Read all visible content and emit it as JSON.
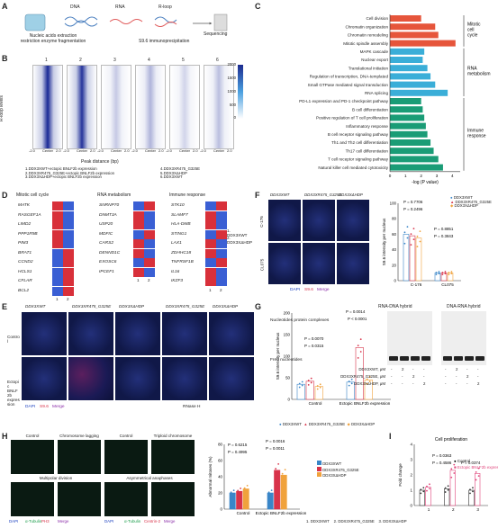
{
  "panels": {
    "A": {
      "letter": "A",
      "labels": [
        "DNA",
        "RNA",
        "R-loop",
        "Nucleic acids extraction",
        "restriction enzyme fragmentation",
        "S9.6 immunoprecipitation",
        "Sequencing"
      ]
    },
    "B": {
      "letter": "B",
      "ylabel": "R-loop levels",
      "xlabel": "Peak distance (bp)",
      "columns": [
        "1",
        "2",
        "3",
        "4",
        "5",
        "6"
      ],
      "ticks": [
        "-2.0",
        "Center",
        "2.0"
      ],
      "colorbar": [
        "2000",
        "1500",
        "1000",
        "500",
        "0"
      ],
      "legend": [
        "1.DDX3XWT+ectopic BNLF2b expression",
        "2.DDX3XR475_G325E+ectopic BNLF2b expression",
        "3.DDX3XΔHDP+ectopic BNLF2b expression",
        "4.DDX3XR475_G325E",
        "5.DDX3XΔHDP",
        "6.DDX3XWT"
      ]
    },
    "C": {
      "letter": "C",
      "xlabel": "-log (P value)",
      "xticks": [
        "0",
        "1",
        "2",
        "3",
        "4"
      ],
      "groups": [
        {
          "label": "Mitotic cell cycle",
          "color": "#e6553b"
        },
        {
          "label": "RNA metabolism",
          "color": "#3aaed8"
        },
        {
          "label": "Immune response",
          "color": "#1a9c76"
        }
      ]
    },
    "D": {
      "letter": "D",
      "headers": [
        "Mitotic cell cycle",
        "RNA metabolism",
        "Immune response"
      ],
      "col1": [
        "MATK",
        "RASGEF1A",
        "LIMD2",
        "PPP1R9B",
        "PIM3",
        "BRAT1",
        "CCND2",
        "HCLS1",
        "CFLAR",
        "BCL2"
      ],
      "col2": [
        "SNRNP70",
        "DNMT3A",
        "USP20",
        "MDFIC",
        "CARS2",
        "DENND1C",
        "EXOSC6",
        "IPCEF1"
      ],
      "col3": [
        "STK10",
        "SLAMF7",
        "HLA-DMB",
        "STING1",
        "LAX1",
        "ZDHHC18",
        "TNFRSF1B",
        "IL16",
        "IKZF3"
      ],
      "axis": [
        "1",
        "2"
      ],
      "legend": [
        "1. DDX3XWT",
        "2. DDX3XΔHDP"
      ]
    },
    "E": {
      "letter": "E",
      "cols": [
        "DDX3XWT",
        "DDX3XR475_G325E",
        "DDX3XΔHDP",
        "DDX3XR475_G325E",
        "DDX3XΔHDP"
      ],
      "rows": [
        "Control",
        "Ectopic BNLF2b expression"
      ],
      "stain": [
        "DAPI",
        "S9.6",
        "Merge"
      ],
      "footer": "RNase H",
      "ylabel": "S9.6 intensity per nucleus",
      "yticks": [
        "0",
        "50",
        "100",
        "150",
        "200"
      ],
      "pvals": [
        "P = 0.0014",
        "P < 0.0001",
        "P = 0.0070",
        "P = 0.0315"
      ],
      "xcats": [
        "Control",
        "Ectopic BNLF2b expression"
      ],
      "legend": [
        "DDX3XWT",
        "DDX3XR475_G325E",
        "DDX3XΔHDP"
      ]
    },
    "F": {
      "letter": "F",
      "cols": [
        "DDX3XWT",
        "DDX3XR475_G325E",
        "DDX3XΔHDP"
      ],
      "rows": [
        "C-176",
        "CL075"
      ],
      "stain": [
        "DAPI",
        "S9.6",
        "Merge"
      ],
      "ylabel": "S9.6 intensity per nucleus",
      "yticks": [
        "0",
        "20",
        "40",
        "60",
        "80",
        "100"
      ],
      "pvals": [
        "P = 0.7706",
        "P = 0.2496",
        "P = 0.8851",
        "P = 0.3843"
      ],
      "xcats": [
        "C-176",
        "CL075"
      ],
      "legend": [
        "DDX3XWT",
        "DDX3XR475_G325E",
        "DDX3XΔHDP"
      ]
    },
    "G": {
      "letter": "G",
      "titles": [
        "RNA-DNA hybrid",
        "DNA-RNA hybrid"
      ],
      "labels": [
        "Nucleotides protein complexes",
        "Free nucleotides"
      ],
      "rows": [
        {
          "name": "DDX3XWT, μM",
          "v": [
            "-",
            "2",
            "-",
            "-",
            "-",
            "2",
            "-",
            "-"
          ]
        },
        {
          "name": "DDX3XR475_G325E, μM",
          "v": [
            "-",
            "-",
            "2",
            "-",
            "-",
            "-",
            "2",
            "-"
          ]
        },
        {
          "name": "DDX3XΔHDP, μM",
          "v": [
            "-",
            "-",
            "-",
            "2",
            "-",
            "-",
            "-",
            "2"
          ]
        }
      ]
    },
    "H": {
      "letter": "H",
      "cap1": [
        "Control",
        "Chromosome lagging",
        "Control",
        "Triploid chromosome"
      ],
      "cap2": [
        "Multipolar division",
        "Asymmetrical anaphases"
      ],
      "stain1": [
        "DAPI",
        "α-Tubulin",
        "PH3",
        "Merge"
      ],
      "stain2": [
        "DAPI",
        "α-Tubulin",
        "Centrin-2",
        "Merge"
      ],
      "ylabel": "Abnormal mitoses (%)",
      "yticks": [
        "0",
        "20",
        "40",
        "60",
        "80"
      ],
      "pvals": [
        "P = 0.6215",
        "P = 0.4995",
        "P = 0.0016",
        "P = 0.0011"
      ],
      "xcats": [
        "Control",
        "Ectopic BNLF2b expression"
      ],
      "legend": [
        "DDX3XWT",
        "DDX3XR475_G325E",
        "DDX3XΔHDP"
      ]
    },
    "I": {
      "letter": "I",
      "title": "Cell proliferation",
      "ylabel": "Fold change",
      "yticks": [
        "0",
        "1",
        "2",
        "3",
        "4"
      ],
      "pvals": [
        "P = 0.0363",
        "P = 0.4586",
        "P = 0.0374"
      ],
      "xcats": [
        "1",
        "2",
        "3"
      ],
      "legend": [
        "Control",
        "Ectopic BNLF2b expression"
      ],
      "footer": [
        "1. DDX3XWT",
        "2. DDX3XR475_G325E",
        "3. DDX3XΔHDP"
      ]
    }
  },
  "chart_data": [
    {
      "type": "bar",
      "title": "",
      "xlabel": "-log (P value)",
      "ylabel": "",
      "categories": [
        "Cell division",
        "Chromatin organization",
        "Chromatin remodeling",
        "Mitotic spindle assembly",
        "MAPK cascade",
        "Nuclear export",
        "Translational initiation",
        "Regulation of transcription, DNA-templated",
        "Small GTPase mediated signal transduction",
        "RNA splicing",
        "PD-L1 expression and PD-1 checkpoint pathway",
        "B cell differentiation",
        "Positive regulation of T cell proliferation",
        "Inflammatory response",
        "B cell receptor signaling pathway",
        "Th1 and Th2 cell differentiation",
        "Th17 cell differentiation",
        "T cell receptor signaling pathway",
        "Natural killer cell mediated cytotoxicity"
      ],
      "values": [
        2.0,
        2.9,
        3.1,
        4.2,
        2.2,
        2.1,
        2.4,
        2.6,
        2.9,
        3.7,
        2.0,
        2.1,
        2.2,
        2.3,
        2.4,
        2.6,
        2.8,
        3.1,
        3.4
      ],
      "xlim": [
        0,
        4.5
      ]
    },
    {
      "type": "bar",
      "title": "",
      "ylabel": "S9.6 intensity per nucleus",
      "categories": [
        "Control",
        "Ectopic BNLF2b expression"
      ],
      "series": [
        {
          "name": "DDX3XWT",
          "values": [
            35,
            40
          ]
        },
        {
          "name": "DDX3XR475_G325E",
          "values": [
            42,
            120
          ]
        },
        {
          "name": "DDX3XΔHDP",
          "values": [
            30,
            45
          ]
        }
      ],
      "ylim": [
        0,
        200
      ]
    },
    {
      "type": "bar",
      "title": "",
      "ylabel": "S9.6 intensity per nucleus",
      "categories": [
        "C-176",
        "CL075"
      ],
      "series": [
        {
          "name": "DDX3XWT",
          "values": [
            60,
            10
          ]
        },
        {
          "name": "DDX3XR475_G325E",
          "values": [
            58,
            10
          ]
        },
        {
          "name": "DDX3XΔHDP",
          "values": [
            55,
            10
          ]
        }
      ],
      "ylim": [
        0,
        100
      ]
    },
    {
      "type": "bar",
      "title": "",
      "ylabel": "Abnormal mitoses (%)",
      "categories": [
        "Control",
        "Ectopic BNLF2b expression"
      ],
      "series": [
        {
          "name": "DDX3XWT",
          "values": [
            20,
            20
          ]
        },
        {
          "name": "DDX3XR475_G325E",
          "values": [
            22,
            48
          ]
        },
        {
          "name": "DDX3XΔHDP",
          "values": [
            25,
            42
          ]
        }
      ],
      "ylim": [
        0,
        80
      ]
    },
    {
      "type": "bar",
      "title": "Cell proliferation",
      "ylabel": "Fold change",
      "categories": [
        "1",
        "2",
        "3"
      ],
      "series": [
        {
          "name": "Control",
          "values": [
            1.0,
            1.1,
            1.0
          ]
        },
        {
          "name": "Ectopic BNLF2b expression",
          "values": [
            1.2,
            2.3,
            2.1
          ]
        }
      ],
      "ylim": [
        0,
        4
      ]
    }
  ]
}
